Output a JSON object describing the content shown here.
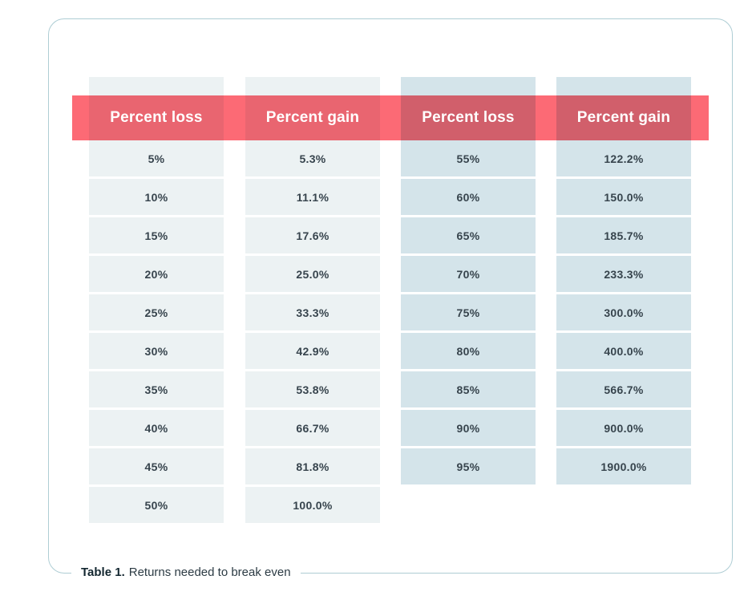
{
  "chart_data": {
    "type": "table",
    "title": "Table 1. Returns needed to break even",
    "caption_label": "Table 1.",
    "caption_text": "Returns needed to break even",
    "columns": [
      {
        "header": "Percent loss",
        "theme": "light",
        "values": [
          "5%",
          "10%",
          "15%",
          "20%",
          "25%",
          "30%",
          "35%",
          "40%",
          "45%",
          "50%"
        ]
      },
      {
        "header": "Percent gain",
        "theme": "light",
        "values": [
          "5.3%",
          "11.1%",
          "17.6%",
          "25.0%",
          "33.3%",
          "42.9%",
          "53.8%",
          "66.7%",
          "81.8%",
          "100.0%"
        ]
      },
      {
        "header": "Percent loss",
        "theme": "blue",
        "values": [
          "55%",
          "60%",
          "65%",
          "70%",
          "75%",
          "80%",
          "85%",
          "90%",
          "95%"
        ]
      },
      {
        "header": "Percent gain",
        "theme": "blue",
        "values": [
          "122.2%",
          "150.0%",
          "185.7%",
          "233.3%",
          "300.0%",
          "400.0%",
          "566.7%",
          "900.0%",
          "1900.0%"
        ]
      }
    ]
  },
  "colors": {
    "band": "#fc6a75",
    "light_cell": "#ecf2f3",
    "blue_cell": "#d4e4ea",
    "line": "#aecdd4",
    "cell_text": "#37444d",
    "header_text": "#ffffff",
    "caption_label": "#132730",
    "caption_text": "#2c3b44"
  }
}
